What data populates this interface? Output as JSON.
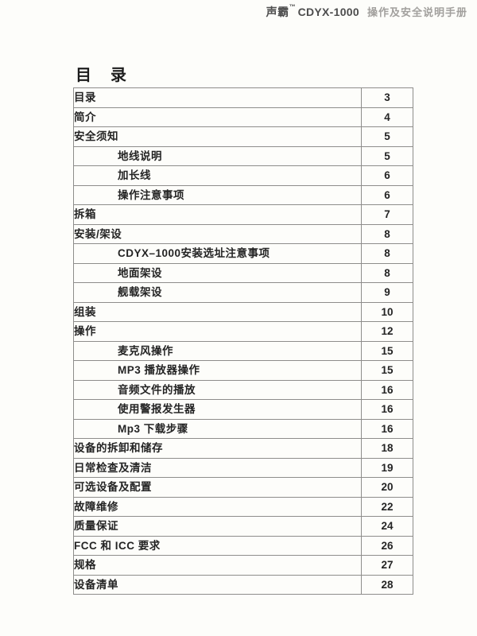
{
  "header": {
    "brand": "声霸",
    "trademark": "™",
    "model": "CDYX-1000",
    "doc_title": "操作及安全说明手册"
  },
  "page": {
    "title": "目　录"
  },
  "colors": {
    "background": "#fdfdfa",
    "table_border": "#8e8d8b",
    "text": "#242424",
    "header_brand": "#4d4d4d",
    "header_doc_title": "#a2a09d"
  },
  "toc": {
    "rows": [
      {
        "label": "目录",
        "page": "3",
        "indent": false
      },
      {
        "label": "简介",
        "page": "4",
        "indent": false
      },
      {
        "label": "安全须知",
        "page": "5",
        "indent": false
      },
      {
        "label": "地线说明",
        "page": "5",
        "indent": true
      },
      {
        "label": "加长线",
        "page": "6",
        "indent": true
      },
      {
        "label": "操作注意事项",
        "page": "6",
        "indent": true
      },
      {
        "label": "拆箱",
        "page": "7",
        "indent": false
      },
      {
        "label": "安装/架设",
        "page": "8",
        "indent": false
      },
      {
        "label": "CDYX–1000安装选址注意事项",
        "page": "8",
        "indent": true
      },
      {
        "label": "地面架设",
        "page": "8",
        "indent": true
      },
      {
        "label": "舰载架设",
        "page": "9",
        "indent": true
      },
      {
        "label": "组装",
        "page": "10",
        "indent": false
      },
      {
        "label": "操作",
        "page": "12",
        "indent": false
      },
      {
        "label": "麦克风操作",
        "page": "15",
        "indent": true
      },
      {
        "label": "MP3 播放器操作",
        "page": "15",
        "indent": true
      },
      {
        "label": "音频文件的播放",
        "page": "16",
        "indent": true
      },
      {
        "label": "使用警报发生器",
        "page": "16",
        "indent": true
      },
      {
        "label": "Mp3 下载步骤",
        "page": "16",
        "indent": true
      },
      {
        "label": "设备的拆卸和储存",
        "page": "18",
        "indent": false
      },
      {
        "label": "日常检查及清洁",
        "page": "19",
        "indent": false
      },
      {
        "label": "可选设备及配置",
        "page": "20",
        "indent": false
      },
      {
        "label": "故障维修",
        "page": "22",
        "indent": false
      },
      {
        "label": "质量保证",
        "page": "24",
        "indent": false
      },
      {
        "label": "FCC 和 ICC 要求",
        "page": "26",
        "indent": false
      },
      {
        "label": "规格",
        "page": "27",
        "indent": false
      },
      {
        "label": "设备清单",
        "page": "28",
        "indent": false
      }
    ]
  }
}
